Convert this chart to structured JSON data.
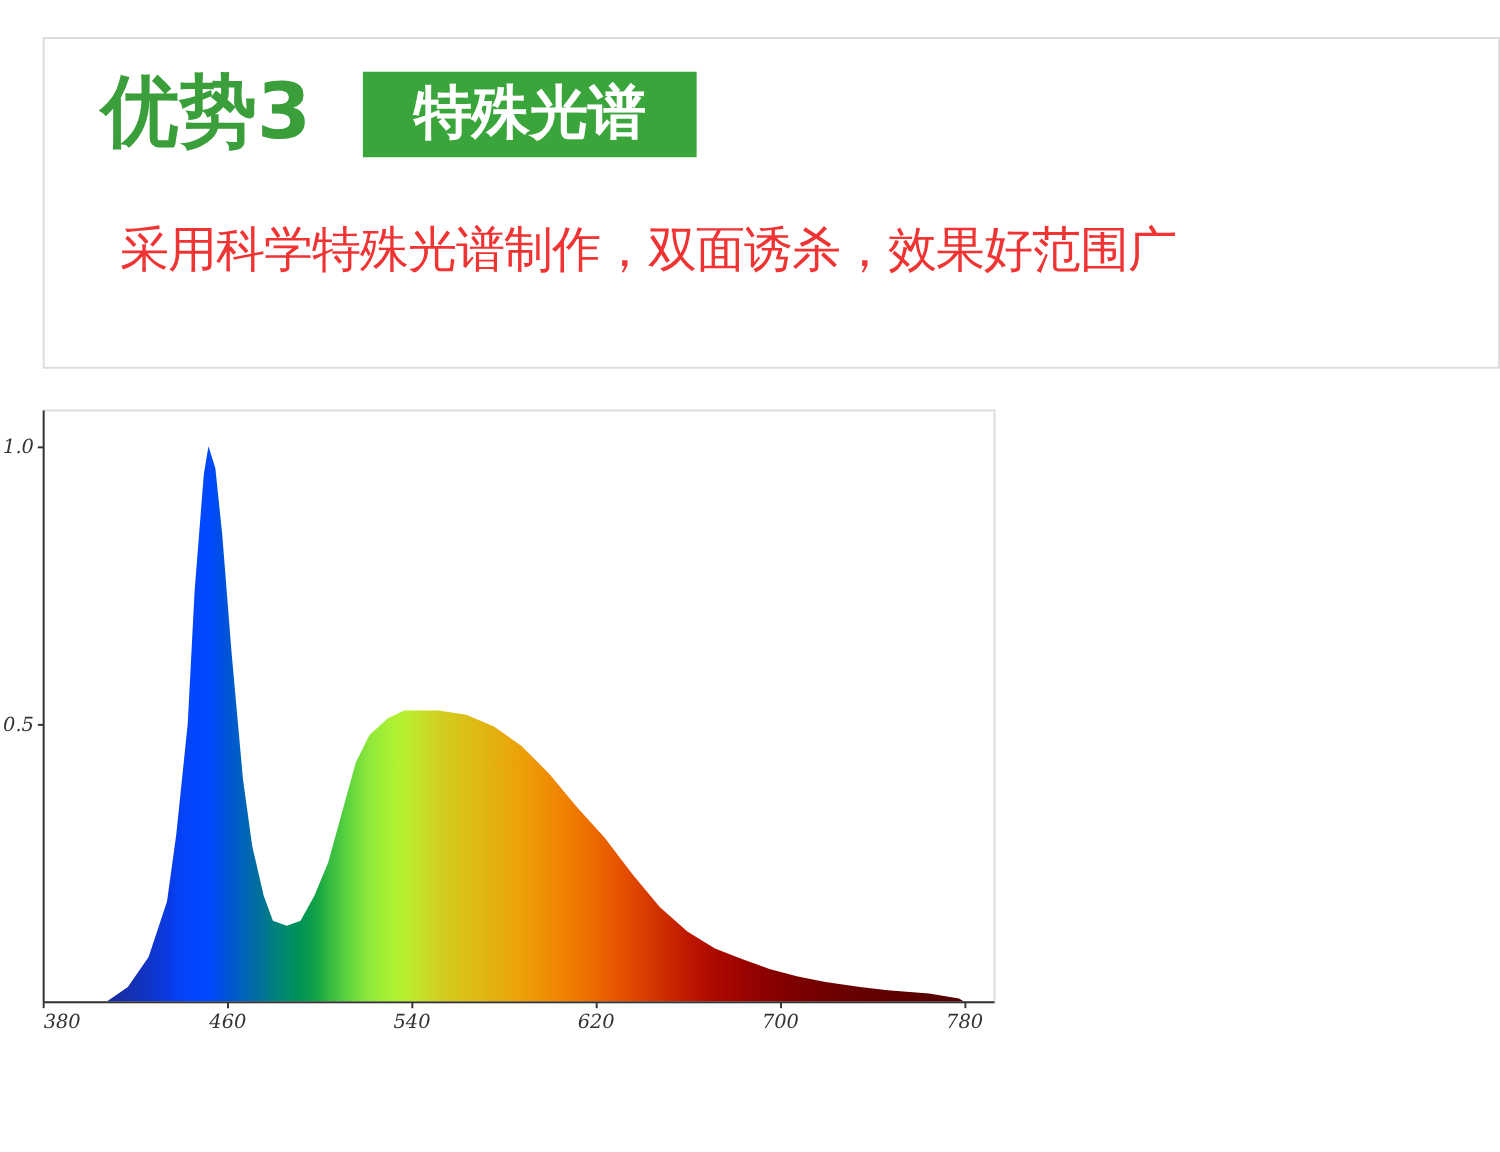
{
  "chart_data": {
    "type": "area",
    "title": "优势3",
    "subtitle": "采用科学特殊光谱制作，双面诱杀，效果好范围广",
    "annotations": [
      "特殊光谱"
    ],
    "x": [
      408,
      417,
      426,
      434,
      438,
      443,
      446,
      450,
      452,
      455,
      458,
      462,
      467,
      471,
      476,
      480,
      486,
      492,
      498,
      504,
      510,
      516,
      522,
      530,
      537,
      552,
      564,
      576,
      588,
      600,
      612,
      624,
      636,
      648,
      660,
      672,
      684,
      696,
      708,
      720,
      735,
      747,
      765,
      778,
      780
    ],
    "series": [
      {
        "values": [
          0,
          0.026,
          0.08,
          0.18,
          0.3,
          0.5,
          0.74,
          0.95,
          1.0,
          0.96,
          0.84,
          0.63,
          0.4,
          0.28,
          0.19,
          0.145,
          0.136,
          0.145,
          0.19,
          0.25,
          0.34,
          0.43,
          0.48,
          0.51,
          0.524,
          0.524,
          0.516,
          0.495,
          0.46,
          0.41,
          0.35,
          0.295,
          0.23,
          0.17,
          0.126,
          0.095,
          0.076,
          0.058,
          0.045,
          0.035,
          0.026,
          0.02,
          0.014,
          0.005,
          0
        ],
        "colors": [
          "#1a2a9a",
          "#1530b0",
          "#1035c8",
          "#0a3ae0",
          "#0640f0",
          "#0244fa",
          "#0046ff",
          "#0048ff",
          "#0048ff",
          "#004cf0",
          "#0050e0",
          "#0058d0",
          "#0062bc",
          "#006aa8",
          "#007494",
          "#007e80",
          "#008a6a",
          "#009456",
          "#10a048",
          "#30b840",
          "#50cc40",
          "#70dc3c",
          "#90e83a",
          "#a8f034",
          "#b8f030",
          "#d0d020",
          "#dcc018",
          "#e4b010",
          "#eca008",
          "#f08c04",
          "#f07800",
          "#ea6000",
          "#e04800",
          "#d03000",
          "#c01800",
          "#ac0a00",
          "#9a0400",
          "#8a0000",
          "#7c0000",
          "#700000",
          "#660000",
          "#600000",
          "#580000",
          "#540000",
          "#500000"
        ]
      }
    ],
    "xlim": [
      380,
      793
    ],
    "ylim": [
      0,
      1.066
    ],
    "xticks": [
      380,
      460,
      540,
      620,
      700,
      780
    ],
    "yticks": [
      {
        "value": 0.5,
        "label": "0.5"
      },
      {
        "value": 1.0,
        "label": "1.0"
      }
    ],
    "grid": false
  }
}
